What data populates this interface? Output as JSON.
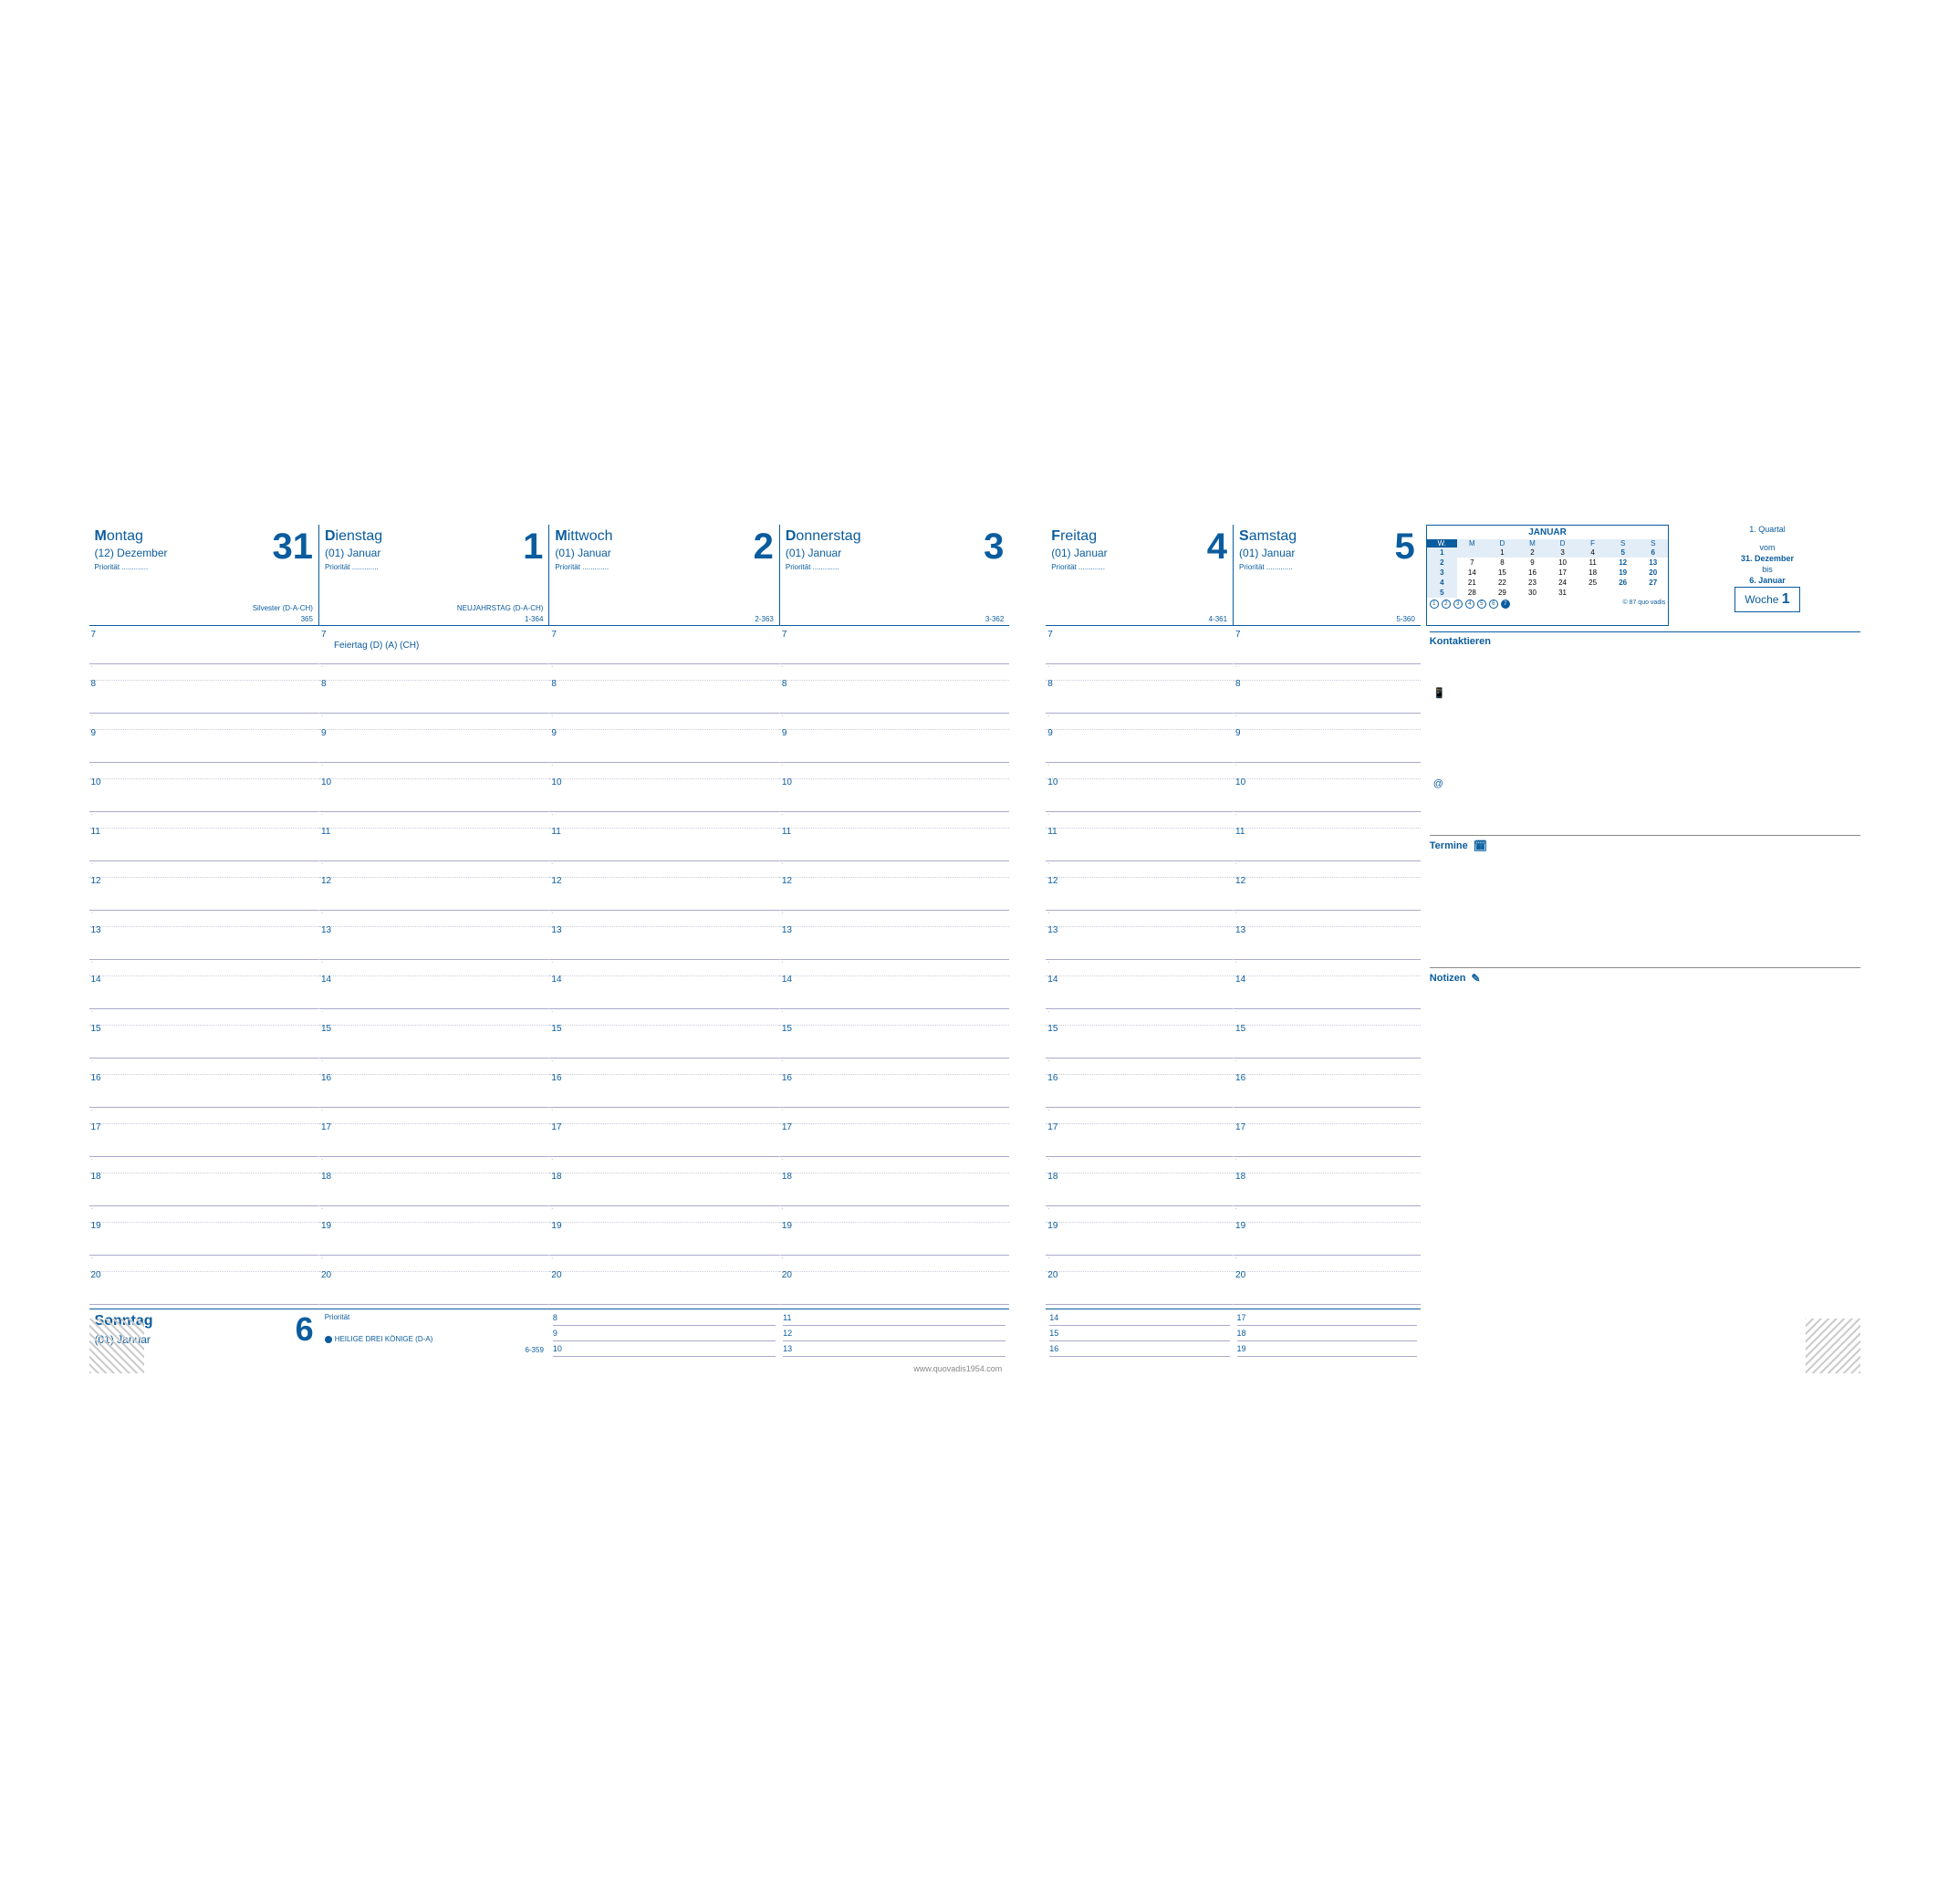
{
  "colors": {
    "blue": "#0a5c9e",
    "light": "#e3edf7",
    "grid": "#aac"
  },
  "days": [
    {
      "name": "Montag",
      "num": "31",
      "month": "(12) Dezember",
      "priority": "Priorität",
      "holiday": "Silvester (D-A-CH)",
      "index": "365"
    },
    {
      "name": "Dienstag",
      "num": "1",
      "month": "(01) Januar",
      "priority": "Priorität",
      "holiday": "NEUJAHRSTAG (D-A-CH)",
      "index": "1-364"
    },
    {
      "name": "Mittwoch",
      "num": "2",
      "month": "(01) Januar",
      "priority": "Priorität",
      "holiday": "",
      "index": "2-363"
    },
    {
      "name": "Donnerstag",
      "num": "3",
      "month": "(01) Januar",
      "priority": "Priorität",
      "holiday": "",
      "index": "3-362"
    },
    {
      "name": "Freitag",
      "num": "4",
      "month": "(01) Januar",
      "priority": "Priorität",
      "holiday": "",
      "index": "4-361"
    },
    {
      "name": "Samstag",
      "num": "5",
      "month": "(01) Januar",
      "priority": "Priorität",
      "holiday": "",
      "index": "5-360"
    }
  ],
  "hours": [
    "7",
    "8",
    "9",
    "10",
    "11",
    "12",
    "13",
    "14",
    "15",
    "16",
    "17",
    "18",
    "19",
    "20"
  ],
  "tuesdayNote": "Feiertag (D) (A) (CH)",
  "sunday": {
    "name": "Sonntag",
    "num": "6",
    "month": "(01) Januar",
    "priority": "Priorität",
    "holiday": "HEILIGE DREI KÖNIGE (D-A)",
    "index": "6-359"
  },
  "sunTimesA": [
    "8",
    "9",
    "10"
  ],
  "sunTimesB": [
    "11",
    "12",
    "13"
  ],
  "sunTimesC": [
    "14",
    "15",
    "16"
  ],
  "sunTimesD": [
    "17",
    "18",
    "19"
  ],
  "footer": "www.quovadis1954.com",
  "mini": {
    "title": "JANUAR",
    "head": [
      "W.",
      "M",
      "D",
      "M",
      "D",
      "F",
      "S",
      "S"
    ],
    "rows": [
      [
        "1",
        "",
        "1",
        "2",
        "3",
        "4",
        "5",
        "6"
      ],
      [
        "2",
        "7",
        "8",
        "9",
        "10",
        "11",
        "12",
        "13"
      ],
      [
        "3",
        "14",
        "15",
        "16",
        "17",
        "18",
        "19",
        "20"
      ],
      [
        "4",
        "21",
        "22",
        "23",
        "24",
        "25",
        "26",
        "27"
      ],
      [
        "5",
        "28",
        "29",
        "30",
        "31",
        "",
        "",
        ""
      ]
    ],
    "copyright": "© 87 quo vadis",
    "circles": [
      "1",
      "2",
      "3",
      "4",
      "5",
      "6",
      "7"
    ]
  },
  "weekInfo": {
    "quartal": "1. Quartal",
    "vom": "vom",
    "from": "31. Dezember",
    "bis": "bis",
    "to": "6. Januar",
    "label": "Woche",
    "num": "1"
  },
  "panels": {
    "kontakt": {
      "title": "Kontaktieren",
      "phone": "☎",
      "at": "@"
    },
    "termine": {
      "title": "Termine"
    },
    "notizen": {
      "title": "Notizen"
    }
  }
}
